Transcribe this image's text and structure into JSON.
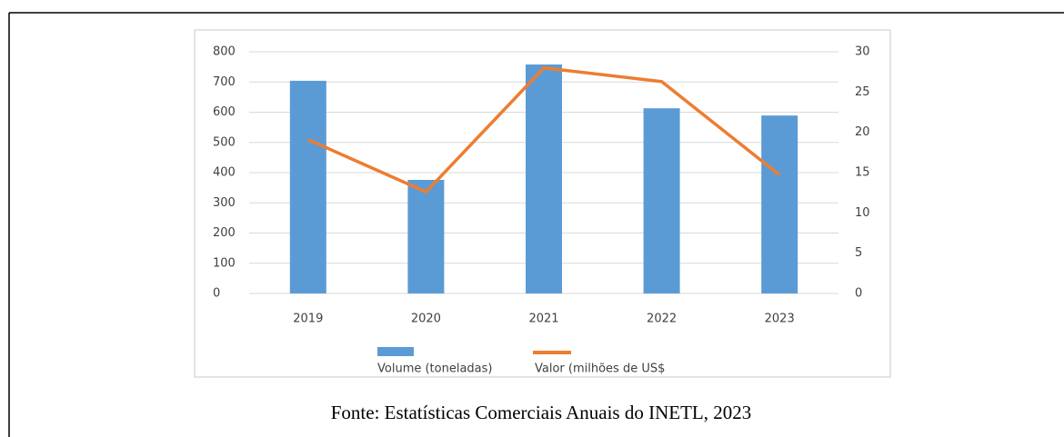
{
  "chart_data": {
    "type": "bar-line",
    "categories": [
      "2019",
      "2020",
      "2021",
      "2022",
      "2023"
    ],
    "series": [
      {
        "name": "Volume (toneladas)",
        "color": "#5b9bd5",
        "type": "bar",
        "values": [
          704,
          376,
          758,
          613,
          589
        ]
      },
      {
        "name": "Valor (milhões de US$",
        "color": "#ed7d31",
        "type": "line",
        "axis": "y2",
        "values": [
          19.1,
          12.6,
          28.0,
          26.3,
          14.7
        ]
      }
    ],
    "ylim": [
      0,
      800
    ],
    "yticks": [
      0,
      100,
      200,
      300,
      400,
      500,
      600,
      700,
      800
    ],
    "y2lim": [
      0,
      30
    ],
    "y2ticks": [
      0,
      5,
      10,
      15,
      20,
      25,
      30
    ],
    "grid": true,
    "legend": "bottom"
  },
  "caption": "Fonte: Estatísticas Comerciais Anuais do INETL, 2023"
}
